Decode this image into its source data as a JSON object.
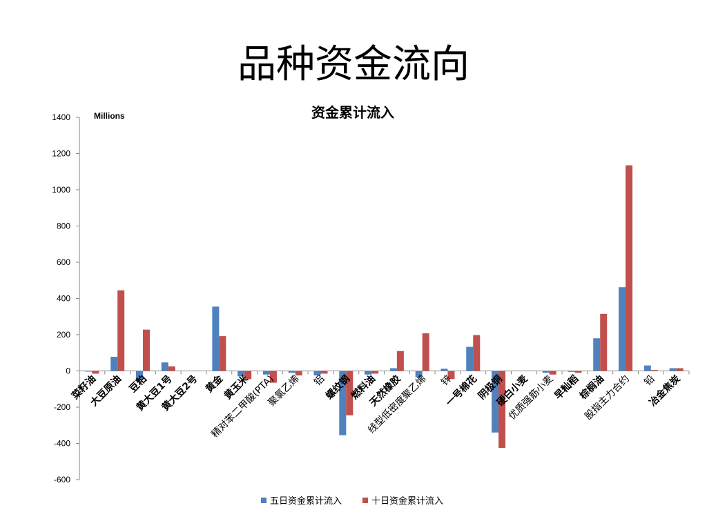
{
  "slide": {
    "title": "品种资金流向"
  },
  "chart_data": {
    "type": "bar",
    "title": "资金累计流入",
    "unit_label": "Millions",
    "ylim": [
      -600,
      1400
    ],
    "yticks": [
      1400,
      1200,
      1000,
      800,
      600,
      400,
      200,
      0,
      -200,
      -400,
      -600
    ],
    "categories": [
      "菜籽油",
      "大豆原油",
      "豆粕",
      "黄大豆1号",
      "黄大豆2号",
      "黄金",
      "黄玉米",
      "精对苯二甲酸(PTA)",
      "聚氯乙烯",
      "铝",
      "螺纹钢",
      "燃料油",
      "天然橡胶",
      "线型低密度聚乙烯",
      "锌",
      "一号棉花",
      "阴极铜",
      "硬白小麦",
      "优质强筋小麦",
      "早籼稻",
      "棕榈油",
      "股指主力合约",
      "铅",
      "冶金焦炭"
    ],
    "bold_categories": [
      true,
      true,
      true,
      true,
      true,
      true,
      true,
      false,
      false,
      false,
      true,
      true,
      true,
      false,
      false,
      true,
      true,
      true,
      false,
      true,
      true,
      false,
      false,
      true
    ],
    "series": [
      {
        "name": "五日资金累计流入",
        "color": "#4F81BD",
        "values": [
          -3,
          78,
          -50,
          47,
          0,
          355,
          -30,
          -20,
          -10,
          -25,
          -355,
          -20,
          15,
          -35,
          12,
          133,
          -340,
          0,
          -10,
          -5,
          180,
          462,
          30,
          15
        ]
      },
      {
        "name": "十日资金累计流入",
        "color": "#C0504D",
        "values": [
          -15,
          445,
          228,
          25,
          0,
          192,
          -45,
          -65,
          -25,
          -15,
          -245,
          -15,
          110,
          208,
          -45,
          198,
          -425,
          0,
          -20,
          -10,
          315,
          1135,
          5,
          15
        ]
      }
    ],
    "grid": false,
    "legend": "bottom"
  }
}
